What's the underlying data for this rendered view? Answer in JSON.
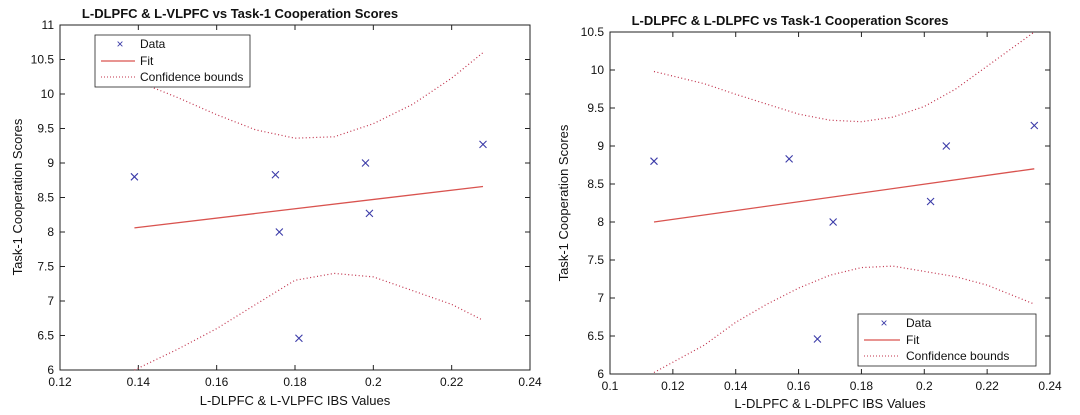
{
  "chart_data": [
    {
      "type": "scatter",
      "title": "L-DLPFC & L-VLPFC vs Task-1 Cooperation Scores",
      "xlabel": "L-DLPFC & L-VLPFC  IBS Values",
      "ylabel": "Task-1 Cooperation Scores",
      "xlim": [
        0.12,
        0.24
      ],
      "ylim": [
        6,
        11
      ],
      "xticks": [
        0.12,
        0.14,
        0.16,
        0.18,
        0.2,
        0.22,
        0.24
      ],
      "yticks": [
        6,
        6.5,
        7,
        7.5,
        8,
        8.5,
        9,
        9.5,
        10,
        10.5,
        11
      ],
      "grid": false,
      "legend_position": "top-left",
      "series": [
        {
          "name": "Data",
          "style": "markers-x",
          "color": "#3b3ba8",
          "points": [
            [
              0.139,
              8.8
            ],
            [
              0.175,
              8.83
            ],
            [
              0.176,
              8.0
            ],
            [
              0.181,
              6.46
            ],
            [
              0.198,
              9.0
            ],
            [
              0.199,
              8.27
            ],
            [
              0.228,
              9.27
            ]
          ]
        },
        {
          "name": "Fit",
          "style": "line",
          "color": "#d9534f",
          "points": [
            [
              0.139,
              8.06
            ],
            [
              0.228,
              8.66
            ]
          ]
        },
        {
          "name": "Confidence bounds",
          "style": "dotted",
          "color": "#c0304a",
          "upper": [
            [
              0.139,
              10.2
            ],
            [
              0.15,
              9.95
            ],
            [
              0.16,
              9.7
            ],
            [
              0.17,
              9.48
            ],
            [
              0.18,
              9.36
            ],
            [
              0.19,
              9.38
            ],
            [
              0.2,
              9.57
            ],
            [
              0.21,
              9.85
            ],
            [
              0.22,
              10.23
            ],
            [
              0.228,
              10.6
            ]
          ],
          "lower": [
            [
              0.139,
              6.0
            ],
            [
              0.15,
              6.3
            ],
            [
              0.16,
              6.6
            ],
            [
              0.17,
              6.95
            ],
            [
              0.18,
              7.3
            ],
            [
              0.19,
              7.4
            ],
            [
              0.2,
              7.35
            ],
            [
              0.21,
              7.15
            ],
            [
              0.22,
              6.95
            ],
            [
              0.228,
              6.72
            ]
          ]
        }
      ]
    },
    {
      "type": "scatter",
      "title": "L-DLPFC & L-DLPFC vs Task-1 Cooperation Scores",
      "xlabel": "L-DLPFC & L-DLPFC  IBS Values",
      "ylabel": "Task-1 Cooperation Scores",
      "xlim": [
        0.1,
        0.24
      ],
      "ylim": [
        6,
        10.5
      ],
      "xticks": [
        0.1,
        0.12,
        0.14,
        0.16,
        0.18,
        0.2,
        0.22,
        0.24
      ],
      "yticks": [
        6,
        6.5,
        7,
        7.5,
        8,
        8.5,
        9,
        9.5,
        10,
        10.5
      ],
      "grid": false,
      "legend_position": "bottom-right",
      "series": [
        {
          "name": "Data",
          "style": "markers-x",
          "color": "#3b3ba8",
          "points": [
            [
              0.114,
              8.8
            ],
            [
              0.157,
              8.83
            ],
            [
              0.166,
              6.46
            ],
            [
              0.171,
              8.0
            ],
            [
              0.202,
              8.27
            ],
            [
              0.207,
              9.0
            ],
            [
              0.235,
              9.27
            ]
          ]
        },
        {
          "name": "Fit",
          "style": "line",
          "color": "#d9534f",
          "points": [
            [
              0.114,
              8.0
            ],
            [
              0.235,
              8.7
            ]
          ]
        },
        {
          "name": "Confidence bounds",
          "style": "dotted",
          "color": "#c0304a",
          "upper": [
            [
              0.114,
              9.98
            ],
            [
              0.13,
              9.82
            ],
            [
              0.14,
              9.68
            ],
            [
              0.15,
              9.55
            ],
            [
              0.16,
              9.42
            ],
            [
              0.17,
              9.34
            ],
            [
              0.18,
              9.32
            ],
            [
              0.19,
              9.38
            ],
            [
              0.2,
              9.52
            ],
            [
              0.21,
              9.75
            ],
            [
              0.22,
              10.05
            ],
            [
              0.235,
              10.5
            ]
          ],
          "lower": [
            [
              0.114,
              6.02
            ],
            [
              0.13,
              6.38
            ],
            [
              0.14,
              6.68
            ],
            [
              0.15,
              6.92
            ],
            [
              0.16,
              7.13
            ],
            [
              0.17,
              7.3
            ],
            [
              0.18,
              7.4
            ],
            [
              0.19,
              7.42
            ],
            [
              0.2,
              7.35
            ],
            [
              0.21,
              7.28
            ],
            [
              0.22,
              7.17
            ],
            [
              0.235,
              6.92
            ]
          ]
        }
      ]
    }
  ]
}
